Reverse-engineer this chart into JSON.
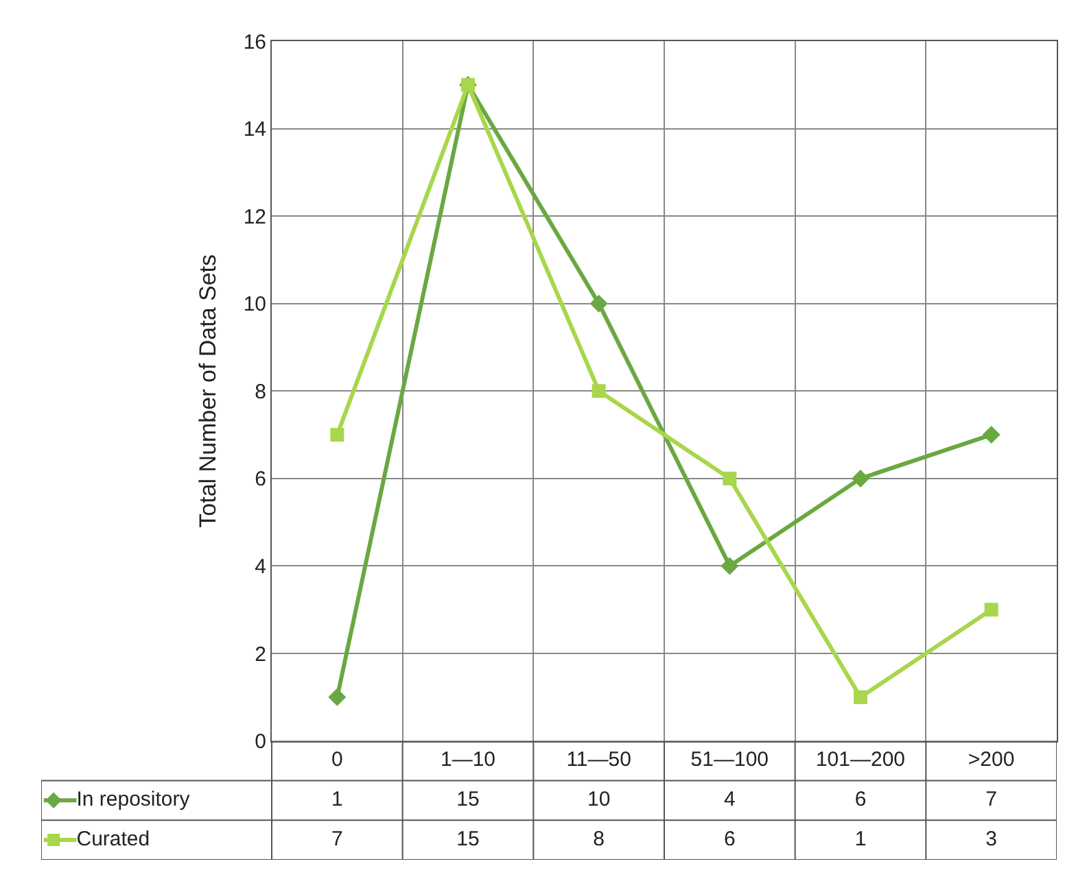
{
  "chart_data": {
    "type": "line",
    "ylabel": "Total Number of Data Sets",
    "categories": [
      "0",
      "1—10",
      "11—50",
      "51—100",
      "101—200",
      ">200"
    ],
    "series": [
      {
        "name": "In repository",
        "color": "#6aa842",
        "marker": "diamond",
        "values": [
          1,
          15,
          10,
          4,
          6,
          7
        ]
      },
      {
        "name": "Curated",
        "color": "#a8d64c",
        "marker": "square",
        "values": [
          7,
          15,
          8,
          6,
          1,
          3
        ]
      }
    ],
    "ylim": [
      0,
      16
    ],
    "yticks": [
      0,
      2,
      4,
      6,
      8,
      10,
      12,
      14,
      16
    ],
    "grid": true,
    "legend": "bottom",
    "data_labels": true,
    "line_style": "solid"
  }
}
